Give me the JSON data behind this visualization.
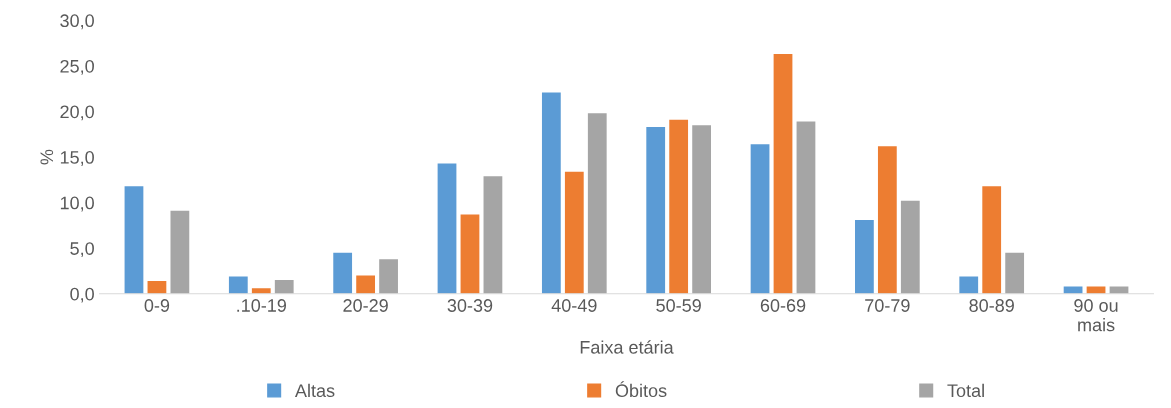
{
  "chart_data": {
    "type": "bar",
    "xlabel": "Faixa etária",
    "ylabel": "%",
    "categories": [
      "0-9",
      ".10-19",
      "20-29",
      "30-39",
      "40-49",
      "50-59",
      "60-69",
      "70-79",
      "80-89",
      "90 ou\nmais"
    ],
    "series": [
      {
        "name": "Altas",
        "color": "#5b9bd5",
        "values": [
          11.8,
          1.9,
          4.5,
          14.3,
          22.1,
          18.3,
          16.4,
          8.1,
          1.9,
          0.8
        ]
      },
      {
        "name": "Óbitos",
        "color": "#ed7d31",
        "values": [
          1.4,
          0.6,
          2.0,
          8.7,
          13.4,
          19.1,
          26.3,
          16.2,
          11.8,
          0.8
        ]
      },
      {
        "name": "Total",
        "color": "#a5a5a5",
        "values": [
          9.1,
          1.5,
          3.8,
          12.9,
          19.8,
          18.5,
          18.9,
          10.2,
          4.5,
          0.8
        ]
      }
    ],
    "ylim": [
      0,
      30
    ],
    "yticks": [
      {
        "value": 0,
        "label": "0,0"
      },
      {
        "value": 5,
        "label": "5,0"
      },
      {
        "value": 10,
        "label": "10,0"
      },
      {
        "value": 15,
        "label": "15,0"
      },
      {
        "value": 20,
        "label": "20,0"
      },
      {
        "value": 25,
        "label": "25,0"
      },
      {
        "value": 30,
        "label": "30,0"
      }
    ],
    "grid": false,
    "legend": "bottom"
  }
}
